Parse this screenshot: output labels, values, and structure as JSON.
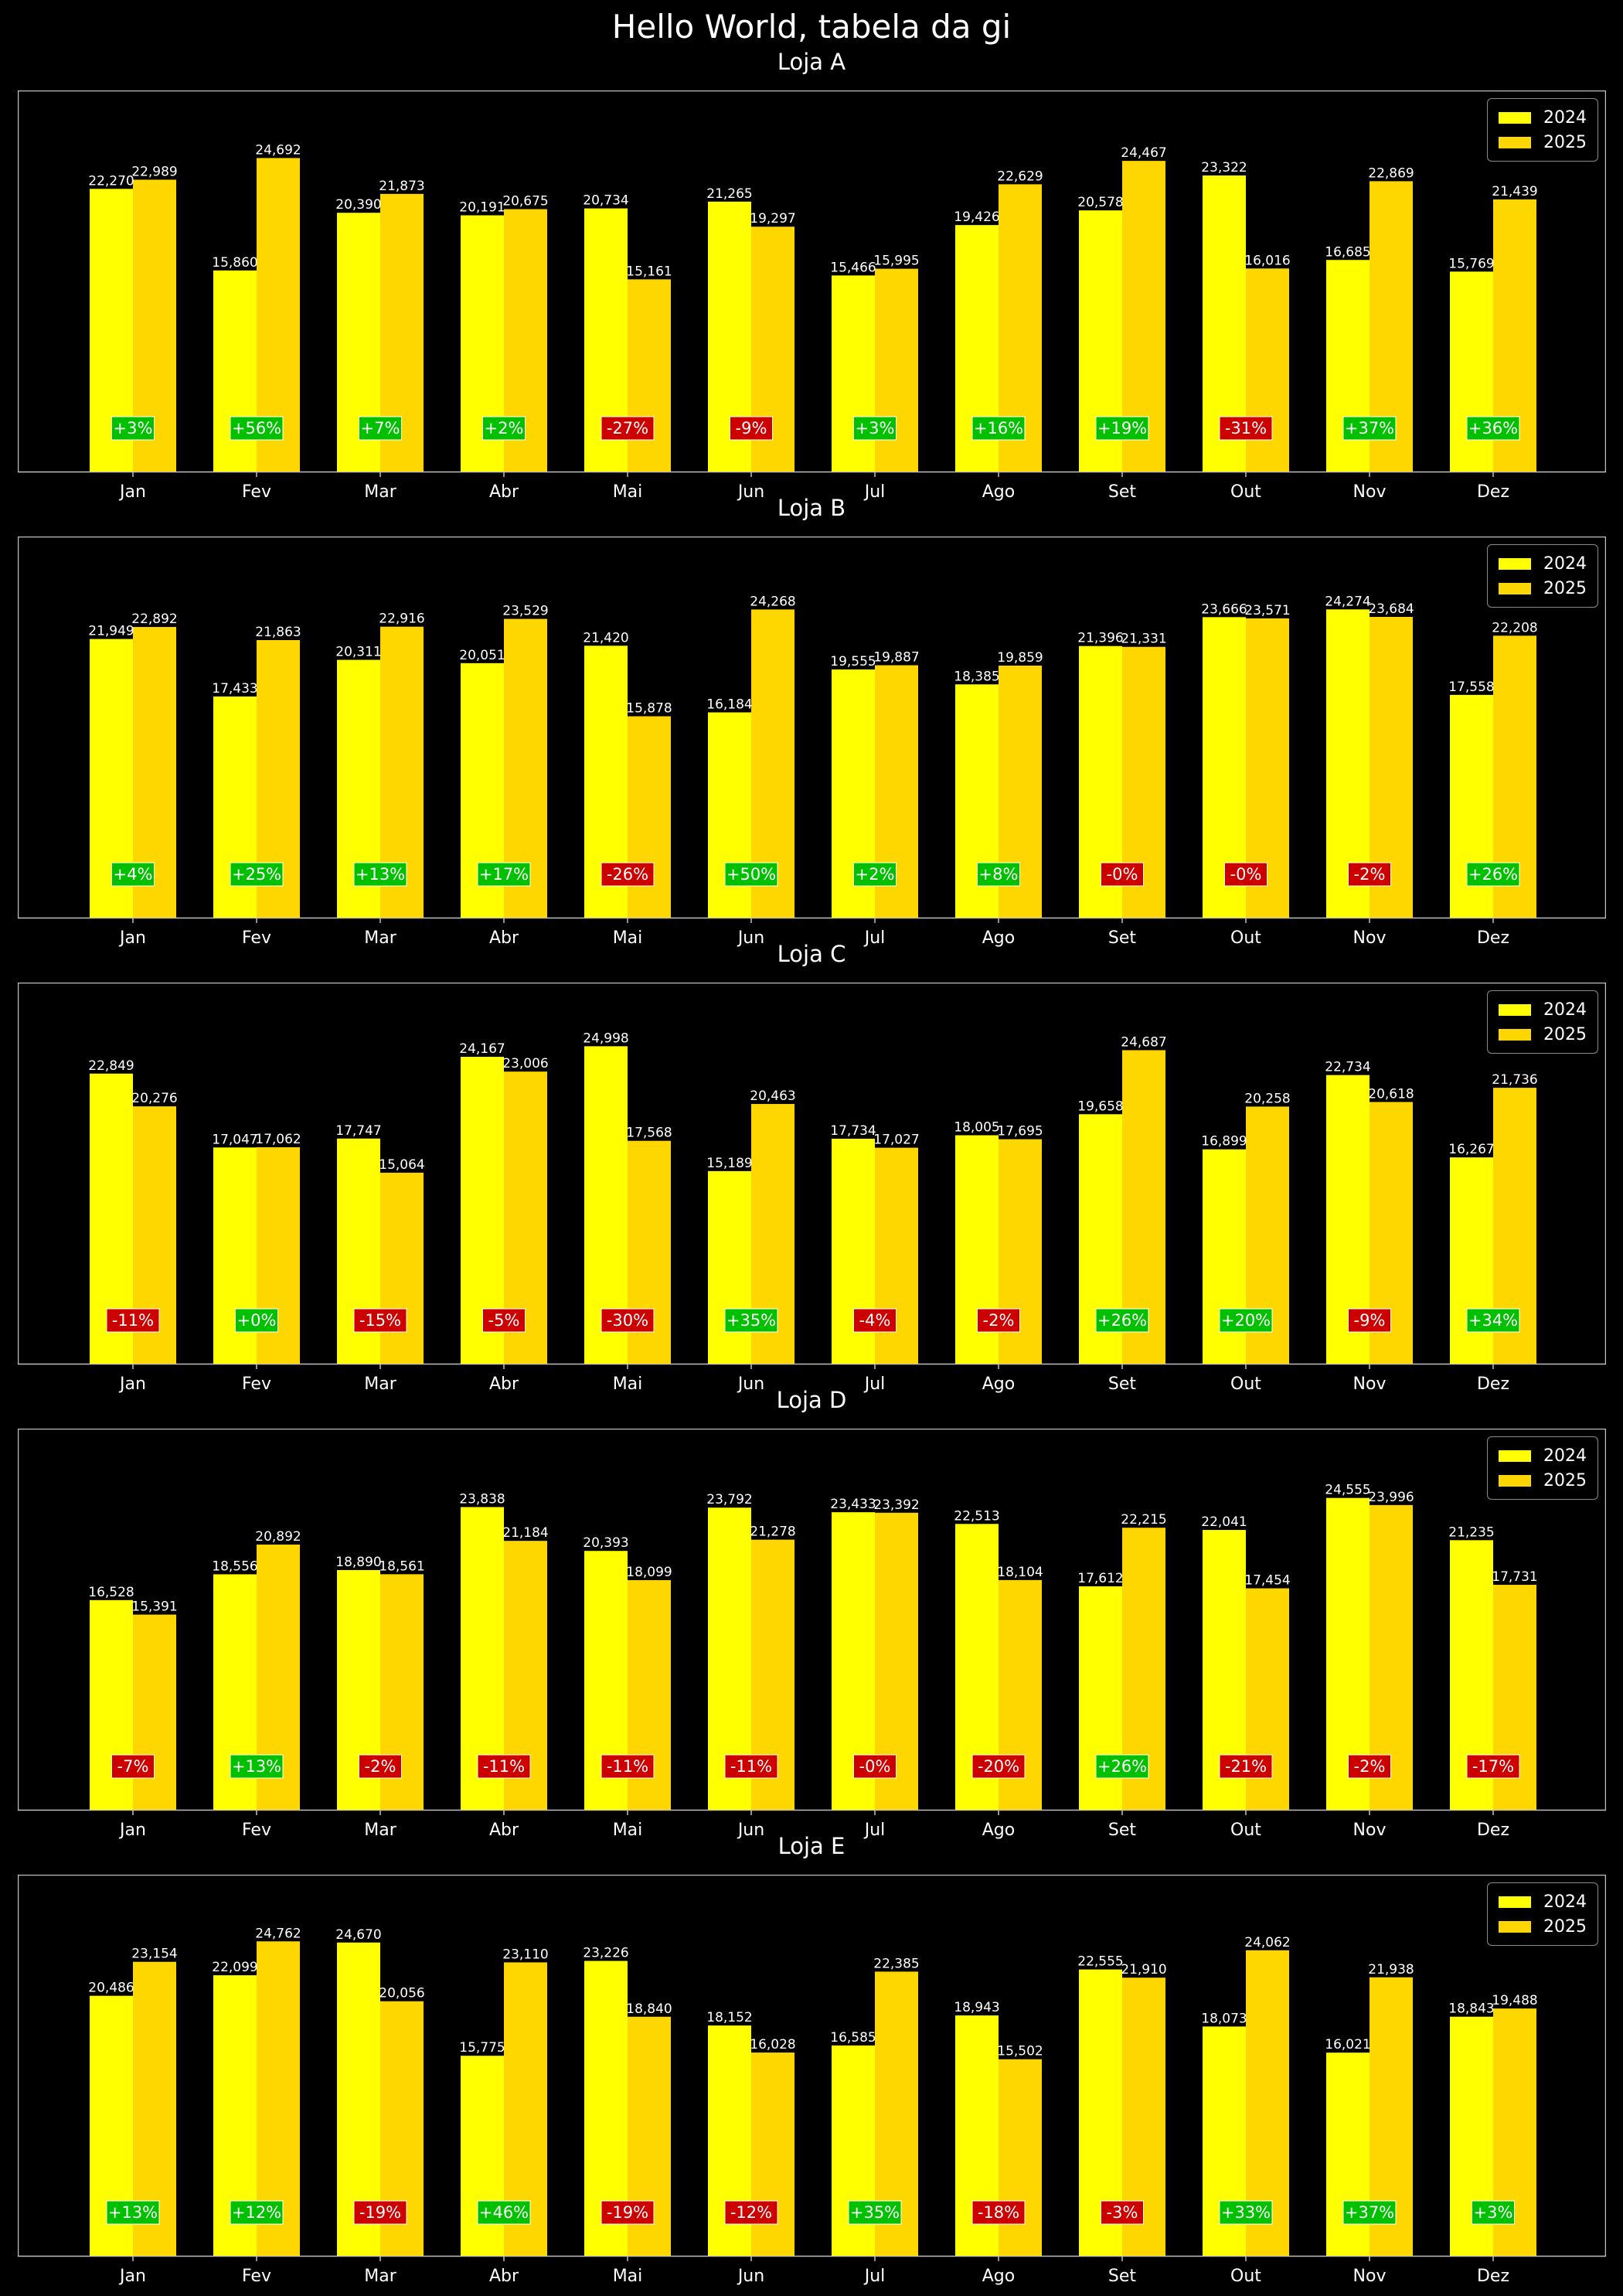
{
  "title": "Hello World, tabela da gi",
  "colors": {
    "bar_2024": "#ffff00",
    "bar_2025": "#ffd700",
    "up": "#00c000",
    "down": "#cc0000",
    "frame": "#bfbfbf"
  },
  "legend": {
    "labels": [
      "2024",
      "2025"
    ],
    "placement": "upper-right"
  },
  "chart_data": [
    {
      "type": "bar",
      "title": "Loja A",
      "categories": [
        "Jan",
        "Fev",
        "Mar",
        "Abr",
        "Mai",
        "Jun",
        "Jul",
        "Ago",
        "Set",
        "Out",
        "Nov",
        "Dez"
      ],
      "series": [
        {
          "name": "2024",
          "values": [
            22270,
            15860,
            20390,
            20191,
            20734,
            21265,
            15466,
            19426,
            20578,
            23322,
            16685,
            15769
          ]
        },
        {
          "name": "2025",
          "values": [
            22989,
            24692,
            21873,
            20675,
            15161,
            19297,
            15995,
            22629,
            24467,
            16016,
            22869,
            21439
          ]
        }
      ],
      "value_labels_2024": [
        "22,270",
        "15,860",
        "20,390",
        "20,191",
        "20,734",
        "21,265",
        "15,466",
        "19,426",
        "20,578",
        "23,322",
        "16,685",
        "15,769"
      ],
      "value_labels_2025": [
        "22,989",
        "24,692",
        "21,873",
        "20,675",
        "15,161",
        "19,297",
        "15,995",
        "22,629",
        "24,467",
        "16,016",
        "22,869",
        "21,439"
      ],
      "change_labels": [
        "+3%",
        "+56%",
        "+7%",
        "+2%",
        "-27%",
        "-9%",
        "+3%",
        "+16%",
        "+19%",
        "-31%",
        "+37%",
        "+36%"
      ],
      "ylim": [
        0,
        30000
      ]
    },
    {
      "type": "bar",
      "title": "Loja B",
      "categories": [
        "Jan",
        "Fev",
        "Mar",
        "Abr",
        "Mai",
        "Jun",
        "Jul",
        "Ago",
        "Set",
        "Out",
        "Nov",
        "Dez"
      ],
      "series": [
        {
          "name": "2024",
          "values": [
            21949,
            17433,
            20311,
            20051,
            21420,
            16184,
            19555,
            18385,
            21396,
            23666,
            24274,
            17558
          ]
        },
        {
          "name": "2025",
          "values": [
            22892,
            21863,
            22916,
            23529,
            15878,
            24268,
            19887,
            19859,
            21331,
            23571,
            23684,
            22208
          ]
        }
      ],
      "value_labels_2024": [
        "21,949",
        "17,433",
        "20,311",
        "20,051",
        "21,420",
        "16,184",
        "19,555",
        "18,385",
        "21,396",
        "23,666",
        "24,274",
        "17,558"
      ],
      "value_labels_2025": [
        "22,892",
        "21,863",
        "22,916",
        "23,529",
        "15,878",
        "24,268",
        "19,887",
        "19,859",
        "21,331",
        "23,571",
        "23,684",
        "22,208"
      ],
      "change_labels": [
        "+4%",
        "+25%",
        "+13%",
        "+17%",
        "-26%",
        "+50%",
        "+2%",
        "+8%",
        "-0%",
        "-0%",
        "-2%",
        "+26%"
      ],
      "ylim": [
        0,
        30000
      ]
    },
    {
      "type": "bar",
      "title": "Loja C",
      "categories": [
        "Jan",
        "Fev",
        "Mar",
        "Abr",
        "Mai",
        "Jun",
        "Jul",
        "Ago",
        "Set",
        "Out",
        "Nov",
        "Dez"
      ],
      "series": [
        {
          "name": "2024",
          "values": [
            22849,
            17047,
            17747,
            24167,
            24998,
            15189,
            17734,
            18005,
            19658,
            16899,
            22734,
            16267
          ]
        },
        {
          "name": "2025",
          "values": [
            20276,
            17062,
            15064,
            23006,
            17568,
            20463,
            17027,
            17695,
            24687,
            20258,
            20618,
            21736
          ]
        }
      ],
      "value_labels_2024": [
        "22,849",
        "17,047",
        "17,747",
        "24,167",
        "24,998",
        "15,189",
        "17,734",
        "18,005",
        "19,658",
        "16,899",
        "22,734",
        "16,267"
      ],
      "value_labels_2025": [
        "20,276",
        "17,062",
        "15,064",
        "23,006",
        "17,568",
        "20,463",
        "17,027",
        "17,695",
        "24,687",
        "20,258",
        "20,618",
        "21,736"
      ],
      "change_labels": [
        "-11%",
        "+0%",
        "-15%",
        "-5%",
        "-30%",
        "+35%",
        "-4%",
        "-2%",
        "+26%",
        "+20%",
        "-9%",
        "+34%"
      ],
      "ylim": [
        0,
        30000
      ]
    },
    {
      "type": "bar",
      "title": "Loja D",
      "categories": [
        "Jan",
        "Fev",
        "Mar",
        "Abr",
        "Mai",
        "Jun",
        "Jul",
        "Ago",
        "Set",
        "Out",
        "Nov",
        "Dez"
      ],
      "series": [
        {
          "name": "2024",
          "values": [
            16528,
            18556,
            18890,
            23838,
            20393,
            23792,
            23433,
            22513,
            17612,
            22041,
            24555,
            21235
          ]
        },
        {
          "name": "2025",
          "values": [
            15391,
            20892,
            18561,
            21184,
            18099,
            21278,
            23392,
            18104,
            22215,
            17454,
            23996,
            17731
          ]
        }
      ],
      "value_labels_2024": [
        "16,528",
        "18,556",
        "18,890",
        "23,838",
        "20,393",
        "23,792",
        "23,433",
        "22,513",
        "17,612",
        "22,041",
        "24,555",
        "21,235"
      ],
      "value_labels_2025": [
        "15,391",
        "20,892",
        "18,561",
        "21,184",
        "18,099",
        "21,278",
        "23,392",
        "18,104",
        "22,215",
        "17,454",
        "23,996",
        "17,731"
      ],
      "change_labels": [
        "-7%",
        "+13%",
        "-2%",
        "-11%",
        "-11%",
        "-11%",
        "-0%",
        "-20%",
        "+26%",
        "-21%",
        "-2%",
        "-17%"
      ],
      "ylim": [
        0,
        30000
      ]
    },
    {
      "type": "bar",
      "title": "Loja E",
      "categories": [
        "Jan",
        "Fev",
        "Mar",
        "Abr",
        "Mai",
        "Jun",
        "Jul",
        "Ago",
        "Set",
        "Out",
        "Nov",
        "Dez"
      ],
      "series": [
        {
          "name": "2024",
          "values": [
            20486,
            22099,
            24670,
            15775,
            23226,
            18152,
            16585,
            18943,
            22555,
            18073,
            16021,
            18843
          ]
        },
        {
          "name": "2025",
          "values": [
            23154,
            24762,
            20056,
            23110,
            18840,
            16028,
            22385,
            15502,
            21910,
            24062,
            21938,
            19488
          ]
        }
      ],
      "value_labels_2024": [
        "20,486",
        "22,099",
        "24,670",
        "15,775",
        "23,226",
        "18,152",
        "16,585",
        "18,943",
        "22,555",
        "18,073",
        "16,021",
        "18,843"
      ],
      "value_labels_2025": [
        "23,154",
        "24,762",
        "20,056",
        "23,110",
        "18,840",
        "16,028",
        "22,385",
        "15,502",
        "21,910",
        "24,062",
        "21,938",
        "19,488"
      ],
      "change_labels": [
        "+13%",
        "+12%",
        "-19%",
        "+46%",
        "-19%",
        "-12%",
        "+35%",
        "-18%",
        "-3%",
        "+33%",
        "+37%",
        "+3%"
      ],
      "ylim": [
        0,
        30000
      ]
    }
  ]
}
